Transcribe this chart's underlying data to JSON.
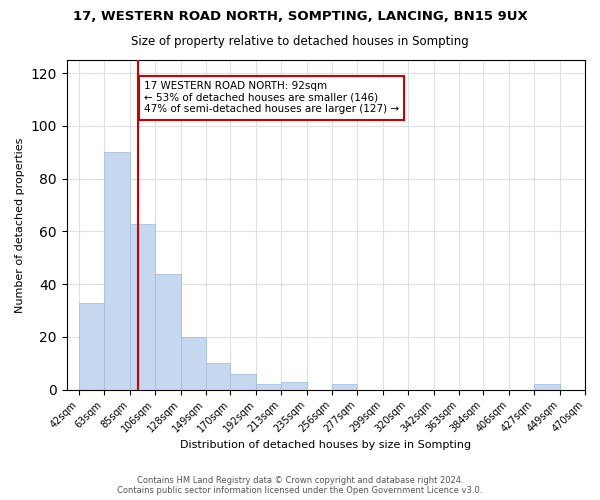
{
  "title": "17, WESTERN ROAD NORTH, SOMPTING, LANCING, BN15 9UX",
  "subtitle": "Size of property relative to detached houses in Sompting",
  "xlabel": "Distribution of detached houses by size in Sompting",
  "ylabel": "Number of detached properties",
  "bin_labels": [
    "42sqm",
    "63sqm",
    "85sqm",
    "106sqm",
    "128sqm",
    "149sqm",
    "170sqm",
    "192sqm",
    "213sqm",
    "235sqm",
    "256sqm",
    "277sqm",
    "299sqm",
    "320sqm",
    "342sqm",
    "363sqm",
    "384sqm",
    "406sqm",
    "427sqm",
    "449sqm",
    "470sqm"
  ],
  "bar_heights": [
    33,
    90,
    63,
    44,
    20,
    10,
    6,
    2,
    3,
    0,
    2,
    0,
    0,
    0,
    0,
    0,
    0,
    0,
    2,
    0
  ],
  "bar_color": "#c5d8f0",
  "bar_edge_color": "#a0b8d8",
  "property_sqm": 92,
  "property_line_color": "#cc0000",
  "annotation_line1": "17 WESTERN ROAD NORTH: 92sqm",
  "annotation_line2": "← 53% of detached houses are smaller (146)",
  "annotation_line3": "47% of semi-detached houses are larger (127) →",
  "annotation_box_color": "#ffffff",
  "annotation_box_edge_color": "#cc0000",
  "ylim": [
    0,
    125
  ],
  "yticks": [
    0,
    20,
    40,
    60,
    80,
    100,
    120
  ],
  "footer_line1": "Contains HM Land Registry data © Crown copyright and database right 2024.",
  "footer_line2": "Contains public sector information licensed under the Open Government Licence v3.0.",
  "background_color": "#ffffff",
  "grid_color": "#e0e0e0",
  "bin_values": [
    42,
    63,
    85,
    106,
    128,
    149,
    170,
    192,
    213,
    235,
    256,
    277,
    299,
    320,
    342,
    363,
    384,
    406,
    427,
    449,
    470
  ]
}
